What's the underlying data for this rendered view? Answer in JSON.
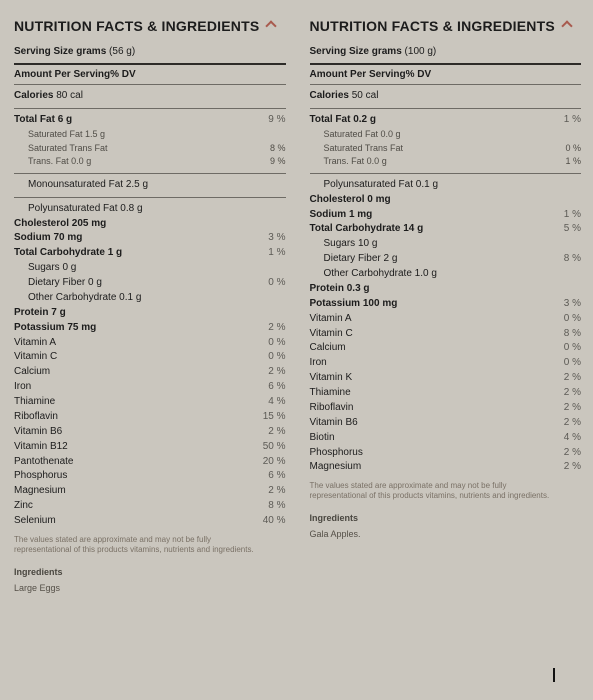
{
  "colors": {
    "bg": "#cac6be",
    "rule": "#6e6b65",
    "accent": "#a85a4e"
  },
  "left": {
    "title": "NUTRITION FACTS & INGREDIENTS",
    "serving_label": "Serving Size grams",
    "serving_value": "(56 g)",
    "amount_line": "Amount Per Serving% DV",
    "calories_label": "Calories",
    "calories_value": "80 cal",
    "rows": [
      {
        "label": "Total Fat 6 g",
        "pct": "9 %",
        "bold": true
      },
      {
        "label": "Saturated Fat 1.5 g",
        "pct": "",
        "indent": 1,
        "small": true
      },
      {
        "label": "Saturated Trans Fat",
        "pct": "8 %",
        "indent": 1,
        "small": true
      },
      {
        "label": "Trans. Fat 0.0 g",
        "pct": "9 %",
        "indent": 1,
        "small": true,
        "hr_after": true
      },
      {
        "label": "Monounsaturated Fat 2.5 g",
        "pct": "",
        "indent": 1,
        "hr_after": true
      },
      {
        "label": "Polyunsaturated Fat 0.8 g",
        "pct": "",
        "indent": 1
      },
      {
        "label": "Cholesterol 205 mg",
        "pct": "",
        "bold": true
      },
      {
        "label": "Sodium 70 mg",
        "pct": "3 %",
        "bold": true
      },
      {
        "label": "Total Carbohydrate 1 g",
        "pct": "1 %",
        "bold": true
      },
      {
        "label": "Sugars 0 g",
        "pct": "",
        "indent": 1
      },
      {
        "label": "Dietary Fiber 0 g",
        "pct": "0 %",
        "indent": 1
      },
      {
        "label": "Other Carbohydrate 0.1 g",
        "pct": "",
        "indent": 1
      },
      {
        "label": "Protein 7 g",
        "pct": "",
        "bold": true
      },
      {
        "label": "Potassium 75 mg",
        "pct": "2 %",
        "bold": true
      },
      {
        "label": "Vitamin A",
        "pct": "0 %"
      },
      {
        "label": "Vitamin C",
        "pct": "0 %"
      },
      {
        "label": "Calcium",
        "pct": "2 %"
      },
      {
        "label": "Iron",
        "pct": "6 %"
      },
      {
        "label": "Thiamine",
        "pct": "4 %"
      },
      {
        "label": "Riboflavin",
        "pct": "15 %"
      },
      {
        "label": "Vitamin B6",
        "pct": "2 %"
      },
      {
        "label": "Vitamin B12",
        "pct": "50 %"
      },
      {
        "label": "Pantothenate",
        "pct": "20 %"
      },
      {
        "label": "Phosphorus",
        "pct": "6 %"
      },
      {
        "label": "Magnesium",
        "pct": "2 %"
      },
      {
        "label": "Zinc",
        "pct": "8 %"
      },
      {
        "label": "Selenium",
        "pct": "40 %"
      }
    ],
    "note": "The values stated are approximate and may not be fully representational of this products vitamins, nutrients and ingredients.",
    "ing_head": "Ingredients",
    "ing_body": "Large Eggs"
  },
  "right": {
    "title": "NUTRITION FACTS & INGREDIENTS",
    "serving_label": "Serving Size grams",
    "serving_value": "(100 g)",
    "amount_line": "Amount Per Serving% DV",
    "calories_label": "Calories",
    "calories_value": "50 cal",
    "rows": [
      {
        "label": "Total Fat 0.2 g",
        "pct": "1 %",
        "bold": true
      },
      {
        "label": "Saturated Fat 0.0 g",
        "pct": "",
        "indent": 1,
        "small": true
      },
      {
        "label": "Saturated Trans Fat",
        "pct": "0 %",
        "indent": 1,
        "small": true
      },
      {
        "label": "Trans. Fat 0.0 g",
        "pct": "1 %",
        "indent": 1,
        "small": true,
        "hr_after": true
      },
      {
        "label": "Polyunsaturated Fat 0.1 g",
        "pct": "",
        "indent": 1
      },
      {
        "label": "Cholesterol 0 mg",
        "pct": "",
        "bold": true
      },
      {
        "label": "Sodium 1 mg",
        "pct": "1 %",
        "bold": true
      },
      {
        "label": "Total Carbohydrate 14 g",
        "pct": "5 %",
        "bold": true
      },
      {
        "label": "Sugars 10 g",
        "pct": "",
        "indent": 1
      },
      {
        "label": "Dietary Fiber 2 g",
        "pct": "8 %",
        "indent": 1
      },
      {
        "label": "Other Carbohydrate 1.0 g",
        "pct": "",
        "indent": 1
      },
      {
        "label": "Protein 0.3 g",
        "pct": "",
        "bold": true
      },
      {
        "label": "Potassium 100 mg",
        "pct": "3 %",
        "bold": true
      },
      {
        "label": "Vitamin A",
        "pct": "0 %"
      },
      {
        "label": "Vitamin C",
        "pct": "8 %"
      },
      {
        "label": "Calcium",
        "pct": "0 %"
      },
      {
        "label": "Iron",
        "pct": "0 %"
      },
      {
        "label": "Vitamin K",
        "pct": "2 %"
      },
      {
        "label": "Thiamine",
        "pct": "2 %"
      },
      {
        "label": "Riboflavin",
        "pct": "2 %"
      },
      {
        "label": "Vitamin B6",
        "pct": "2 %"
      },
      {
        "label": "Biotin",
        "pct": "4 %"
      },
      {
        "label": "Phosphorus",
        "pct": "2 %"
      },
      {
        "label": "Magnesium",
        "pct": "2 %"
      }
    ],
    "note": "The values stated are approximate and may not be fully representational of this products vitamins, nutrients and ingredients.",
    "ing_head": "Ingredients",
    "ing_body": "Gala Apples."
  }
}
